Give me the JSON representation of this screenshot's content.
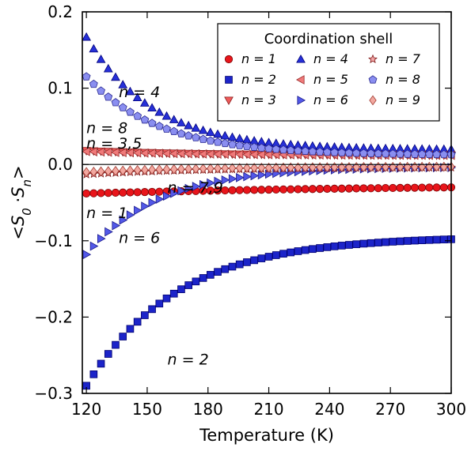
{
  "chart_data": {
    "type": "scatter",
    "title": "",
    "xlabel": "Temperature (K)",
    "ylabel": "<S0 · Sn>",
    "ylabel_parts": {
      "open": "<",
      "s0": "S",
      "s0_sub": "0",
      "dot": "·",
      "sn": "S",
      "sn_sub": "n",
      "close": ">"
    },
    "xlim": [
      118,
      300
    ],
    "ylim": [
      -0.3,
      0.2
    ],
    "xticks": [
      120,
      150,
      180,
      210,
      240,
      270,
      300
    ],
    "xtick_labels": [
      "120",
      "150",
      "180",
      "210",
      "240",
      "270",
      "300"
    ],
    "yticks": [
      -0.3,
      -0.2,
      -0.1,
      0.0,
      0.1,
      0.2
    ],
    "ytick_labels": [
      "−0.3",
      "−0.2",
      "−0.1",
      "0.0",
      "0.1",
      "0.2"
    ],
    "zero_line": true,
    "grid": false,
    "legend": {
      "title": "Coordination shell",
      "placement": "top-right",
      "columns": 3,
      "entries": [
        "n = 1",
        "n = 2",
        "n = 3",
        "n = 4",
        "n = 5",
        "n = 6",
        "n = 7",
        "n = 8",
        "n = 9"
      ]
    },
    "x": [
      120,
      123.6,
      127.2,
      130.8,
      134.4,
      138,
      141.6,
      145.2,
      148.8,
      152.4,
      156,
      159.6,
      163.2,
      166.8,
      170.4,
      174,
      177.6,
      181.2,
      184.8,
      188.4,
      192,
      195.6,
      199.2,
      202.8,
      206.4,
      210,
      213.6,
      217.2,
      220.8,
      224.4,
      228,
      231.6,
      235.2,
      238.8,
      242.4,
      246,
      249.6,
      253.2,
      256.8,
      260.4,
      264,
      267.6,
      271.2,
      274.8,
      278.4,
      282,
      285.6,
      289.2,
      292.8,
      296.4,
      300
    ],
    "series": [
      {
        "name": "n = 1",
        "marker": "circle",
        "color": "#e8151b",
        "edge": "#7a0000",
        "start": -0.038,
        "end": -0.03,
        "curvature": 1.0
      },
      {
        "name": "n = 2",
        "marker": "square",
        "color": "#1c24c9",
        "edge": "#00006e",
        "start": -0.29,
        "end": -0.098,
        "curvature": 4.0
      },
      {
        "name": "n = 3",
        "marker": "triangle-down",
        "color": "#ee5a5a",
        "edge": "#8a1c1c",
        "start": 0.018,
        "end": 0.012,
        "curvature": 3.0
      },
      {
        "name": "n = 4",
        "marker": "triangle-up",
        "color": "#2630d8",
        "edge": "#00007a",
        "start": 0.167,
        "end": 0.02,
        "curvature": 5.5
      },
      {
        "name": "n = 5",
        "marker": "triangle-left",
        "color": "#f07a7a",
        "edge": "#9a2c2c",
        "start": 0.017,
        "end": 0.012,
        "curvature": 3.0
      },
      {
        "name": "n = 6",
        "marker": "triangle-right",
        "color": "#5258e8",
        "edge": "#1a1a8a",
        "start": -0.118,
        "end": -0.004,
        "curvature": 5.0
      },
      {
        "name": "n = 7",
        "marker": "star",
        "color": "#f4a8a8",
        "edge": "#7a1010",
        "start": -0.013,
        "end": -0.004,
        "curvature": 3.0
      },
      {
        "name": "n = 8",
        "marker": "pentagon",
        "color": "#8a8ef0",
        "edge": "#2a2a90",
        "start": 0.115,
        "end": 0.013,
        "curvature": 5.0
      },
      {
        "name": "n = 9",
        "marker": "diamond",
        "color": "#f2a8a0",
        "edge": "#a03a30",
        "start": -0.01,
        "end": -0.003,
        "curvature": 3.0
      }
    ],
    "annotations": [
      {
        "text": "n = 4",
        "x": 136,
        "y": 0.088
      },
      {
        "text": "n = 8",
        "x": 120,
        "y": 0.041
      },
      {
        "text": "n = 3,5",
        "x": 120,
        "y": 0.021
      },
      {
        "text": "n = 7,9",
        "x": 160,
        "y": -0.037
      },
      {
        "text": "n = 1",
        "x": 120,
        "y": -0.07
      },
      {
        "text": "n = 6",
        "x": 136,
        "y": -0.103
      },
      {
        "text": "n = 2",
        "x": 160,
        "y": -0.262
      }
    ]
  }
}
